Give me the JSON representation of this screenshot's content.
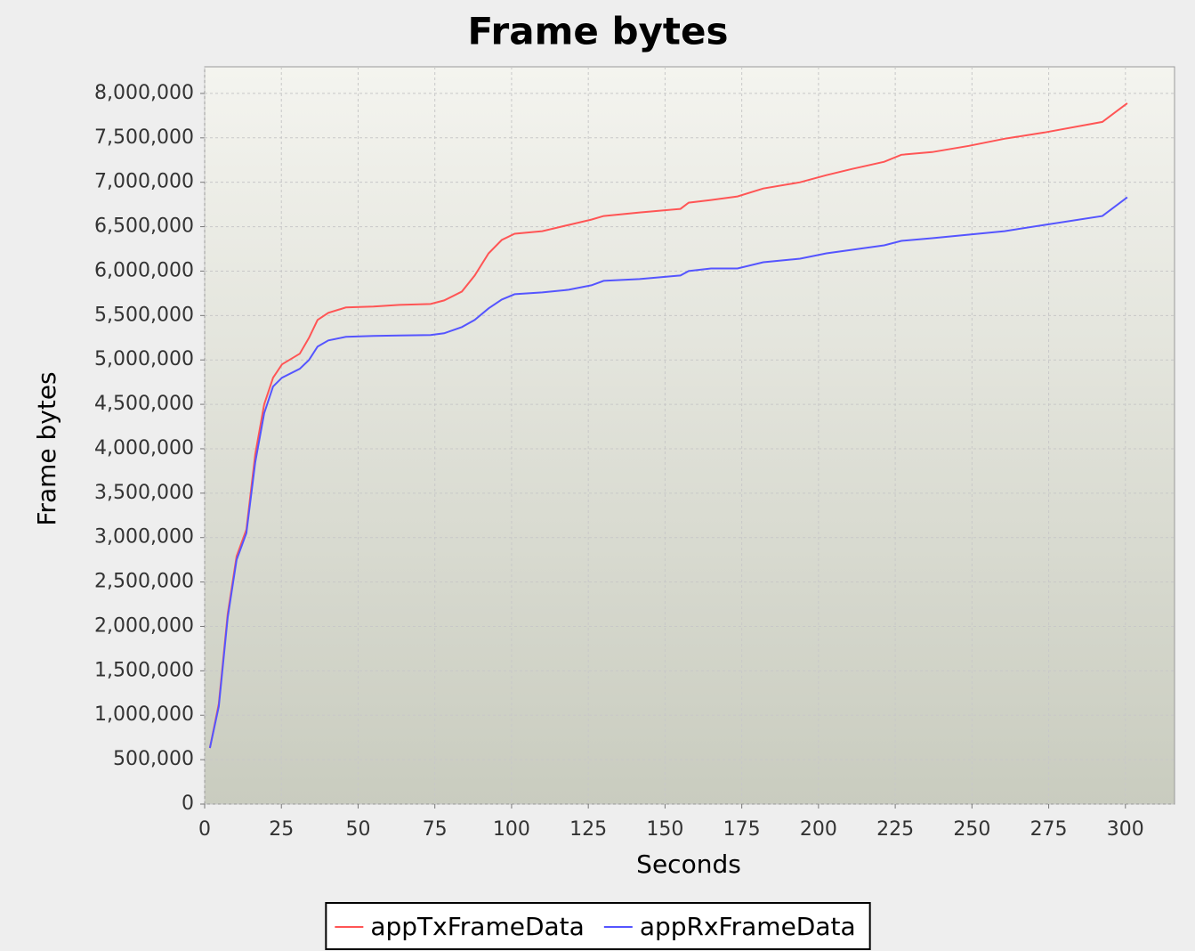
{
  "chart_data": {
    "type": "line",
    "title": "Frame bytes",
    "x_label": "Seconds",
    "y_label": "Frame bytes",
    "x": [
      1.7,
      4.6,
      7.5,
      10.4,
      13.6,
      16.5,
      19.4,
      22.3,
      25.2,
      31,
      34,
      36.8,
      40.3,
      46,
      55,
      63.5,
      73.6,
      78,
      83.8,
      88,
      92.5,
      96.8,
      101,
      110,
      118.6,
      126,
      130,
      141.7,
      155,
      157.7,
      165,
      173.6,
      182,
      194,
      202.6,
      211,
      221.4,
      227,
      237,
      249,
      260.6,
      273.6,
      292.5,
      300.6
    ],
    "series": [
      {
        "name": "appTxFrameData",
        "color": "#ff5555",
        "values": [
          632000,
          1130000,
          2140000,
          2790000,
          3090000,
          3940000,
          4500000,
          4800000,
          4950000,
          5070000,
          5250000,
          5450000,
          5530000,
          5590000,
          5600000,
          5620000,
          5630000,
          5670000,
          5770000,
          5950000,
          6200000,
          6350000,
          6420000,
          6450000,
          6520000,
          6580000,
          6620000,
          6660000,
          6700000,
          6770000,
          6800000,
          6840000,
          6930000,
          7000000,
          7080000,
          7150000,
          7230000,
          7310000,
          7340000,
          7410000,
          7490000,
          7560000,
          7680000,
          7890000
        ]
      },
      {
        "name": "appRxFrameData",
        "color": "#5555ff",
        "values": [
          632000,
          1100000,
          2100000,
          2750000,
          3050000,
          3850000,
          4400000,
          4700000,
          4800000,
          4900000,
          5000000,
          5150000,
          5220000,
          5260000,
          5270000,
          5275000,
          5280000,
          5300000,
          5370000,
          5450000,
          5580000,
          5680000,
          5740000,
          5760000,
          5790000,
          5840000,
          5890000,
          5910000,
          5950000,
          6000000,
          6030000,
          6030000,
          6100000,
          6140000,
          6200000,
          6240000,
          6290000,
          6340000,
          6370000,
          6410000,
          6450000,
          6520000,
          6620000,
          6830000
        ]
      }
    ],
    "xlim": [
      0,
      316
    ],
    "ylim": [
      0,
      8300000
    ],
    "xticks": [
      0,
      25,
      50,
      75,
      100,
      125,
      150,
      175,
      200,
      225,
      250,
      275,
      300
    ],
    "yticks": [
      0,
      {
        "value": 500000,
        "label": "500,000"
      },
      {
        "value": 1000000,
        "label": "1,000,000"
      },
      {
        "value": 1500000,
        "label": "1,500,000"
      },
      {
        "value": 2000000,
        "label": "2,000,000"
      },
      {
        "value": 2500000,
        "label": "2,500,000"
      },
      {
        "value": 3000000,
        "label": "3,000,000"
      },
      {
        "value": 3500000,
        "label": "3,500,000"
      },
      {
        "value": 4000000,
        "label": "4,000,000"
      },
      {
        "value": 4500000,
        "label": "4,500,000"
      },
      {
        "value": 5000000,
        "label": "5,000,000"
      },
      {
        "value": 5500000,
        "label": "5,500,000"
      },
      {
        "value": 6000000,
        "label": "6,000,000"
      },
      {
        "value": 6500000,
        "label": "6,500,000"
      },
      {
        "value": 7000000,
        "label": "7,000,000"
      },
      {
        "value": 7500000,
        "label": "7,500,000"
      },
      {
        "value": 8000000,
        "label": "8,000,000"
      }
    ],
    "grid": true,
    "legend": "bottom"
  }
}
